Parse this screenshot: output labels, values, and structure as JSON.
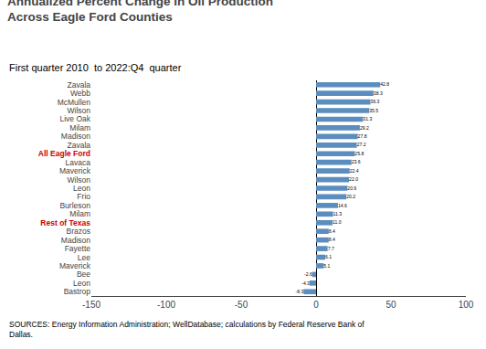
{
  "chart_data": {
    "type": "bar",
    "orientation": "horizontal",
    "title": "Annualized Percent Change in Oil Production\nAcross Eagle Ford Counties",
    "subtitle": "First quarter 2010  to 2022:Q4  quarter",
    "annotations": [
      "SOURCES: Energy Information Administration; WellDatabase; calculations by Federal Reserve Bank of\nDallas."
    ],
    "categories": [
      "Zavala",
      "Webb",
      "McMullen",
      "Wilson",
      "Live Oak",
      "Milam",
      "Madison",
      "Zavala",
      "All Eagle Ford",
      "Lavaca",
      "Maverick",
      "Wilson",
      "Leon",
      "Frio",
      "Burleson",
      "Milam",
      "Rest of Texas",
      "Brazos",
      "Madison",
      "Fayette",
      "Lee",
      "Maverick",
      "Bee",
      "Leon",
      "Bastrop"
    ],
    "values": [
      42.8,
      38.3,
      36.3,
      35.5,
      31.3,
      29.2,
      27.8,
      27.2,
      25.8,
      23.6,
      22.4,
      22.0,
      20.9,
      20.2,
      14.6,
      11.3,
      11.0,
      8.4,
      8.4,
      7.7,
      6.1,
      5.1,
      -2.6,
      -4.3,
      -8.3
    ],
    "value_labels": [
      "42.8",
      "38.3",
      "36.3",
      "35.5",
      "31.3",
      "29.2",
      "27.8",
      "27.2",
      "25.8",
      "23.6",
      "22.4",
      "22.0",
      "20.9",
      "20.2",
      "14.6",
      "11.3",
      "11.0",
      "8.4",
      "8.4",
      "7.7",
      "6.1",
      "5.1",
      "-2.6",
      "-4.3",
      "-8.3"
    ],
    "data_labels": true,
    "color": "#5B8DBE",
    "highlight_labels": [
      "All Eagle Ford",
      "Rest of Texas"
    ],
    "highlight_color": "#CC0000",
    "xlim": [
      -150,
      100
    ],
    "xticks": [
      -150,
      -100,
      -50,
      0,
      50,
      100
    ],
    "grid": false
  }
}
